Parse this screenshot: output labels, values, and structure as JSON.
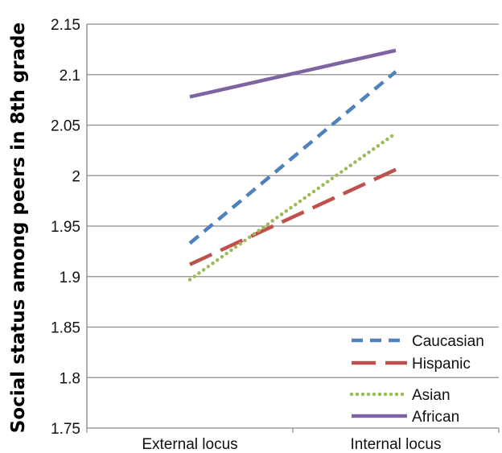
{
  "chart_data": {
    "type": "line",
    "title": "",
    "xlabel": "",
    "ylabel": "Social status among peers in 8th grade",
    "categories": [
      "External locus",
      "Internal locus"
    ],
    "ylim": [
      1.75,
      2.15
    ],
    "yticks": [
      "1.75",
      "1.8",
      "1.85",
      "1.9",
      "1.95",
      "2",
      "2.05",
      "2.1",
      "2.15"
    ],
    "grid": true,
    "legend_position": "bottom-right",
    "series": [
      {
        "name": "Caucasian",
        "values": [
          1.933,
          2.103
        ],
        "color": "#4F81BD",
        "dash": "short-dash"
      },
      {
        "name": "Hispanic",
        "values": [
          1.912,
          2.006
        ],
        "color": "#C0504D",
        "dash": "long-dash"
      },
      {
        "name": "Asian",
        "values": [
          1.897,
          2.042
        ],
        "color": "#9BBB59",
        "dash": "dotted"
      },
      {
        "name": "African",
        "values": [
          2.078,
          2.124
        ],
        "color": "#8064A2",
        "dash": "solid"
      }
    ]
  }
}
